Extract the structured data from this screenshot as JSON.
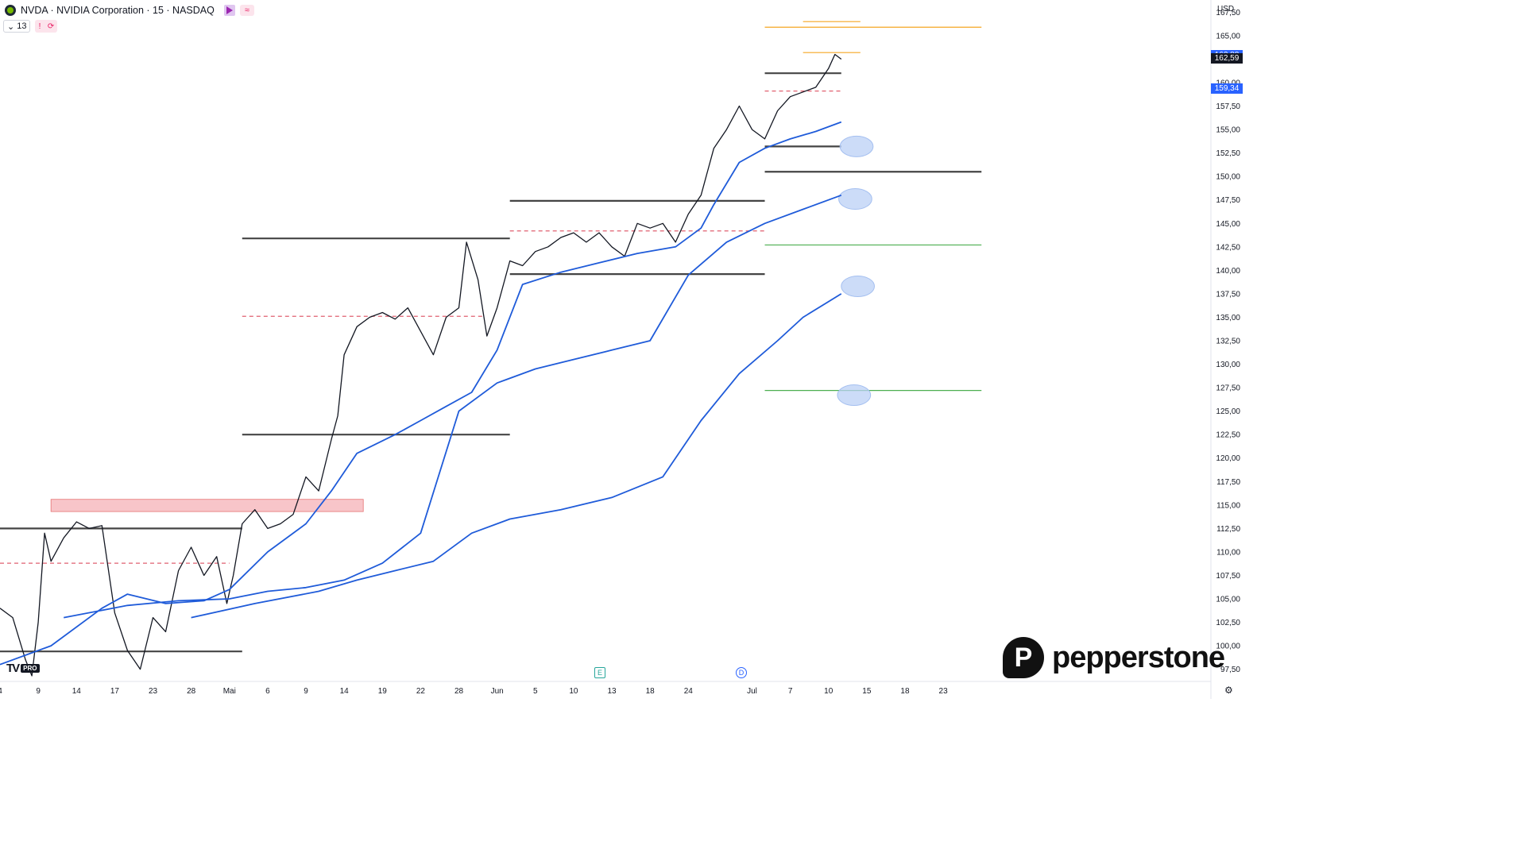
{
  "header": {
    "symbol_line": "NVDA · NVIDIA Corporation · 15 · NASDAQ",
    "indicator_count": "13",
    "alert_mark": "!",
    "currency": "USD"
  },
  "colors": {
    "candle": "#131722",
    "ma": "#1f5bd9",
    "level": "#444444",
    "dash": "#e06070",
    "orange": "#f5a623",
    "green": "#4caf50",
    "zone": "#f6b6bc",
    "badge_blue": "#2962ff",
    "badge_dark": "#131722"
  },
  "watermark": {
    "brand": "pepperstone",
    "badge_letter": "P",
    "platform_mark": "TV",
    "platform_badge": "PRO"
  },
  "events": {
    "earnings": "E",
    "dividend": "D"
  },
  "price_badges": [
    {
      "label": "162,88",
      "value": 162.88,
      "kind": "blue"
    },
    {
      "label": "162,59",
      "value": 162.59,
      "kind": "dark"
    },
    {
      "label": "159,34",
      "value": 159.34,
      "kind": "blue"
    }
  ],
  "chart_data": {
    "type": "line",
    "title": "",
    "yaxis_ticks": [
      "97,50",
      "100,00",
      "102,50",
      "105,00",
      "107,50",
      "110,00",
      "112,50",
      "115,00",
      "117,50",
      "120,00",
      "122,50",
      "125,00",
      "127,50",
      "130,00",
      "132,50",
      "135,00",
      "137,50",
      "140,00",
      "142,50",
      "145,00",
      "147,50",
      "150,00",
      "152,50",
      "155,00",
      "157,50",
      "160,00",
      "162,50",
      "165,00",
      "167,50"
    ],
    "ylim": [
      96.2,
      168.8
    ],
    "xlim": [
      0,
      95
    ],
    "xaxis_ticks": [
      {
        "label": "4",
        "x": 0
      },
      {
        "label": "9",
        "x": 3
      },
      {
        "label": "14",
        "x": 6
      },
      {
        "label": "17",
        "x": 9
      },
      {
        "label": "23",
        "x": 12
      },
      {
        "label": "28",
        "x": 15
      },
      {
        "label": "Mai",
        "x": 18
      },
      {
        "label": "6",
        "x": 21
      },
      {
        "label": "9",
        "x": 24
      },
      {
        "label": "14",
        "x": 27
      },
      {
        "label": "19",
        "x": 30
      },
      {
        "label": "22",
        "x": 33
      },
      {
        "label": "28",
        "x": 36
      },
      {
        "label": "Jun",
        "x": 39
      },
      {
        "label": "5",
        "x": 42
      },
      {
        "label": "10",
        "x": 45
      },
      {
        "label": "13",
        "x": 48
      },
      {
        "label": "18",
        "x": 51
      },
      {
        "label": "24",
        "x": 54
      },
      {
        "label": "Jul",
        "x": 59
      },
      {
        "label": "7",
        "x": 62
      },
      {
        "label": "10",
        "x": 65
      },
      {
        "label": "15",
        "x": 68
      },
      {
        "label": "18",
        "x": 71
      },
      {
        "label": "23",
        "x": 74
      }
    ],
    "series": [
      {
        "values": [
          [
            0,
            104.0
          ],
          [
            1,
            103.0
          ],
          [
            2,
            98.5
          ],
          [
            2.5,
            96.8
          ],
          [
            3,
            102.5
          ],
          [
            3.5,
            112.0
          ],
          [
            4,
            109.0
          ],
          [
            5,
            111.5
          ],
          [
            6,
            113.2
          ],
          [
            7,
            112.5
          ],
          [
            8,
            112.8
          ],
          [
            9,
            103.5
          ],
          [
            10,
            99.5
          ],
          [
            11,
            97.5
          ],
          [
            12,
            103.0
          ],
          [
            13,
            101.5
          ],
          [
            14,
            108.0
          ],
          [
            15,
            110.5
          ],
          [
            16,
            107.5
          ],
          [
            17,
            109.5
          ],
          [
            17.8,
            104.5
          ],
          [
            18.3,
            107.5
          ],
          [
            19,
            113.0
          ],
          [
            20,
            114.5
          ],
          [
            21,
            112.5
          ],
          [
            22,
            113.0
          ],
          [
            23,
            114.0
          ],
          [
            24,
            118.0
          ],
          [
            25,
            116.5
          ],
          [
            26,
            122.0
          ],
          [
            26.5,
            124.5
          ],
          [
            27,
            131.0
          ],
          [
            28,
            134.0
          ],
          [
            29,
            135.0
          ],
          [
            30,
            135.5
          ],
          [
            31,
            134.8
          ],
          [
            32,
            136.0
          ],
          [
            33,
            133.5
          ],
          [
            34,
            131.0
          ],
          [
            35,
            135.0
          ],
          [
            36,
            136.0
          ],
          [
            36.6,
            143.0
          ],
          [
            37.5,
            139.0
          ],
          [
            38.2,
            133.0
          ],
          [
            39,
            136.0
          ],
          [
            40,
            141.0
          ],
          [
            41,
            140.5
          ],
          [
            42,
            142.0
          ],
          [
            43,
            142.5
          ],
          [
            44,
            143.5
          ],
          [
            45,
            144.0
          ],
          [
            46,
            143.0
          ],
          [
            47,
            144.0
          ],
          [
            48,
            142.5
          ],
          [
            49,
            141.5
          ],
          [
            50,
            145.0
          ],
          [
            51,
            144.5
          ],
          [
            52,
            145.0
          ],
          [
            53,
            143.0
          ],
          [
            54,
            146.0
          ],
          [
            55,
            148.0
          ],
          [
            56,
            153.0
          ],
          [
            57,
            155.0
          ],
          [
            58,
            157.5
          ],
          [
            59,
            155.0
          ],
          [
            60,
            154.0
          ],
          [
            61,
            157.0
          ],
          [
            62,
            158.5
          ],
          [
            63,
            159.0
          ],
          [
            64,
            159.5
          ],
          [
            65,
            161.5
          ],
          [
            65.5,
            163.0
          ],
          [
            66,
            162.5
          ]
        ]
      },
      {
        "values": [
          [
            0,
            98.0
          ],
          [
            4,
            100.0
          ],
          [
            8,
            104.0
          ],
          [
            10,
            105.5
          ],
          [
            13,
            104.5
          ],
          [
            16,
            104.8
          ],
          [
            18,
            106.0
          ],
          [
            21,
            110.0
          ],
          [
            24,
            113.0
          ],
          [
            26,
            116.5
          ],
          [
            28,
            120.5
          ],
          [
            31,
            122.5
          ],
          [
            33,
            124.0
          ],
          [
            35,
            125.5
          ],
          [
            37,
            127.0
          ],
          [
            39,
            131.5
          ],
          [
            41,
            138.5
          ],
          [
            44,
            139.8
          ],
          [
            47,
            140.8
          ],
          [
            50,
            141.8
          ],
          [
            53,
            142.5
          ],
          [
            55,
            144.5
          ],
          [
            56,
            147.0
          ],
          [
            58,
            151.5
          ],
          [
            60,
            153.0
          ],
          [
            62,
            154.0
          ],
          [
            64,
            154.8
          ],
          [
            66,
            155.8
          ]
        ]
      },
      {
        "values": [
          [
            5,
            103.0
          ],
          [
            10,
            104.3
          ],
          [
            14,
            104.8
          ],
          [
            18,
            105.0
          ],
          [
            21,
            105.8
          ],
          [
            24,
            106.2
          ],
          [
            27,
            107.0
          ],
          [
            30,
            108.8
          ],
          [
            33,
            112.0
          ],
          [
            36,
            125.0
          ],
          [
            39,
            128.0
          ],
          [
            42,
            129.5
          ],
          [
            45,
            130.5
          ],
          [
            48,
            131.5
          ],
          [
            51,
            132.5
          ],
          [
            54,
            139.5
          ],
          [
            57,
            143.0
          ],
          [
            60,
            145.0
          ],
          [
            63,
            146.5
          ],
          [
            66,
            148.0
          ]
        ]
      },
      {
        "values": [
          [
            15,
            103.0
          ],
          [
            20,
            104.5
          ],
          [
            25,
            105.8
          ],
          [
            28,
            107.0
          ],
          [
            31,
            108.0
          ],
          [
            34,
            109.0
          ],
          [
            37,
            112.0
          ],
          [
            40,
            113.5
          ],
          [
            44,
            114.5
          ],
          [
            48,
            115.8
          ],
          [
            52,
            118.0
          ],
          [
            55,
            124.0
          ],
          [
            58,
            129.0
          ],
          [
            61,
            132.5
          ],
          [
            63,
            135.0
          ],
          [
            66,
            137.5
          ]
        ]
      }
    ],
    "horizontal_levels": [
      {
        "price": 112.5,
        "x_range": [
          0,
          19
        ],
        "style": "solid",
        "color": "level"
      },
      {
        "price": 99.4,
        "x_range": [
          0,
          19
        ],
        "style": "solid",
        "color": "level"
      },
      {
        "price": 143.4,
        "x_range": [
          19,
          40
        ],
        "style": "solid",
        "color": "level"
      },
      {
        "price": 122.5,
        "x_range": [
          19,
          40
        ],
        "style": "solid",
        "color": "level"
      },
      {
        "price": 147.4,
        "x_range": [
          40,
          60
        ],
        "style": "solid",
        "color": "level"
      },
      {
        "price": 139.6,
        "x_range": [
          40,
          60
        ],
        "style": "solid",
        "color": "level"
      },
      {
        "price": 161.0,
        "x_range": [
          60,
          66
        ],
        "style": "solid",
        "color": "level"
      },
      {
        "price": 153.2,
        "x_range": [
          60,
          66
        ],
        "style": "solid",
        "color": "level"
      },
      {
        "price": 150.5,
        "x_range": [
          60,
          77
        ],
        "style": "solid",
        "color": "level"
      },
      {
        "price": 108.8,
        "x_range": [
          0,
          18
        ],
        "style": "dashed",
        "color": "dash"
      },
      {
        "price": 135.1,
        "x_range": [
          19,
          38
        ],
        "style": "dashed",
        "color": "dash"
      },
      {
        "price": 144.2,
        "x_range": [
          40,
          60
        ],
        "style": "dashed",
        "color": "dash"
      },
      {
        "price": 159.1,
        "x_range": [
          60,
          66
        ],
        "style": "dashed",
        "color": "dash"
      },
      {
        "price": 165.9,
        "x_range": [
          60,
          77
        ],
        "style": "solid",
        "color": "orange"
      },
      {
        "price": 166.5,
        "x_range": [
          63,
          67.5
        ],
        "style": "solid",
        "color": "orange"
      },
      {
        "price": 163.2,
        "x_range": [
          63,
          67.5
        ],
        "style": "solid",
        "color": "orange"
      },
      {
        "price": 142.7,
        "x_range": [
          60,
          77
        ],
        "style": "solid",
        "color": "green"
      },
      {
        "price": 127.2,
        "x_range": [
          60,
          77
        ],
        "style": "solid",
        "color": "green"
      }
    ],
    "zones": [
      {
        "x_range": [
          4,
          28.5
        ],
        "price_range": [
          114.3,
          115.6
        ],
        "color": "zone"
      }
    ],
    "ellipses": [
      {
        "x": 67.2,
        "price": 153.2,
        "rx": 1.3,
        "ry": 1.1
      },
      {
        "x": 67.1,
        "price": 147.6,
        "rx": 1.3,
        "ry": 1.1
      },
      {
        "x": 67.3,
        "price": 138.3,
        "rx": 1.3,
        "ry": 1.1
      },
      {
        "x": 67.0,
        "price": 126.7,
        "rx": 1.3,
        "ry": 1.1
      }
    ]
  }
}
